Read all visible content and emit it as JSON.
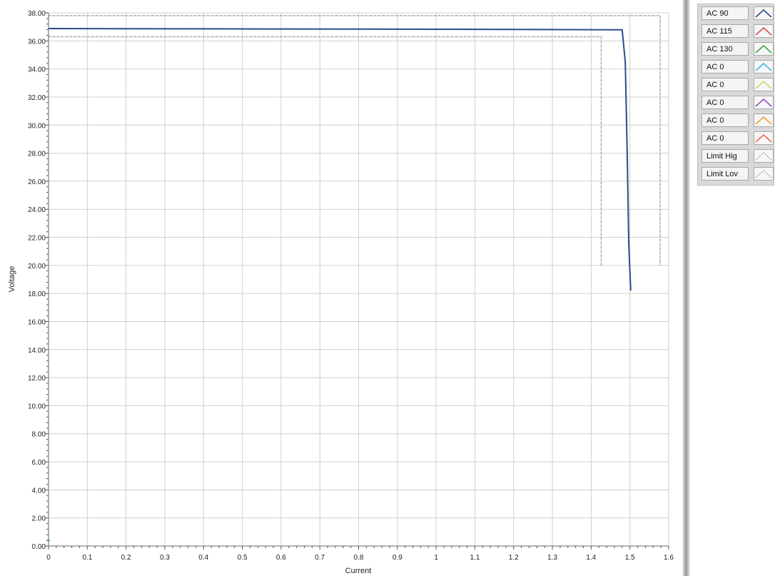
{
  "chart_data": {
    "type": "line",
    "xlabel": "Current",
    "ylabel": "Voltage",
    "xlim": [
      0,
      1.6
    ],
    "ylim": [
      0,
      38
    ],
    "x_ticks": [
      "0",
      "0.1",
      "0.2",
      "0.3",
      "0.4",
      "0.5",
      "0.6",
      "0.7",
      "0.8",
      "0.9",
      "1",
      "1.1",
      "1.2",
      "1.3",
      "1.4",
      "1.5",
      "1.6"
    ],
    "y_ticks": [
      "0.00",
      "2.00",
      "4.00",
      "6.00",
      "8.00",
      "10.00",
      "12.00",
      "14.00",
      "16.00",
      "18.00",
      "20.00",
      "22.00",
      "24.00",
      "26.00",
      "28.00",
      "30.00",
      "32.00",
      "34.00",
      "36.00",
      "38.00"
    ],
    "grid": true,
    "legend_position": "right",
    "series": [
      {
        "name": "AC 90",
        "color": "#2b4b8c",
        "style": "solid",
        "x": [
          0,
          0.2,
          0.4,
          0.6,
          0.8,
          1.0,
          1.2,
          1.4,
          1.48,
          1.488,
          1.493,
          1.497,
          1.502
        ],
        "y": [
          36.88,
          36.87,
          36.86,
          36.85,
          36.84,
          36.83,
          36.82,
          36.8,
          36.79,
          34.5,
          28.0,
          21.5,
          18.2
        ]
      },
      {
        "name": "AC 115",
        "color": "#e04a4a",
        "style": "solid",
        "x": [],
        "y": []
      },
      {
        "name": "AC 130",
        "color": "#3aa83a",
        "style": "solid",
        "x": [],
        "y": []
      },
      {
        "name": "AC 0",
        "color": "#3fb8e8",
        "style": "solid",
        "x": [],
        "y": []
      },
      {
        "name": "AC 0",
        "color": "#c8d86a",
        "style": "solid",
        "x": [],
        "y": []
      },
      {
        "name": "AC 0",
        "color": "#9c4fc2",
        "style": "solid",
        "x": [],
        "y": []
      },
      {
        "name": "AC 0",
        "color": "#f0a030",
        "style": "solid",
        "x": [],
        "y": []
      },
      {
        "name": "AC 0",
        "color": "#ee6a50",
        "style": "solid",
        "x": [],
        "y": []
      },
      {
        "name": "Limit Hig",
        "color": "#a8a8a8",
        "style": "dashed",
        "x": [
          0,
          1.578,
          1.578
        ],
        "y": [
          37.8,
          37.8,
          20.0
        ]
      },
      {
        "name": "Limit Lov",
        "color": "#a8a8a8",
        "style": "dashed",
        "x": [
          0,
          1.426,
          1.426
        ],
        "y": [
          36.3,
          36.3,
          20.0
        ]
      }
    ]
  }
}
